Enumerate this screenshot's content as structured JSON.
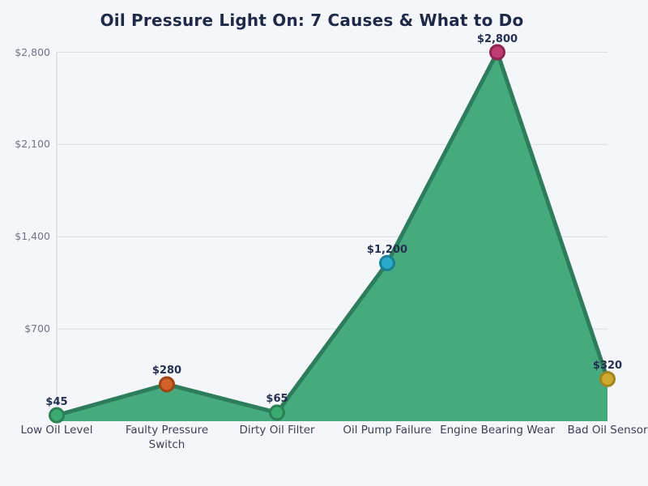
{
  "title": "Oil Pressure Light On: 7 Causes & What to Do",
  "chart_data": {
    "type": "area",
    "title": "Oil Pressure Light On: 7 Causes & What to Do",
    "categories": [
      "Low Oil Level",
      "Faulty Pressure Switch",
      "Dirty Oil Filter",
      "Oil Pump Failure",
      "Engine Bearing Wear",
      "Bad Oil Sensor"
    ],
    "values": [
      45,
      280,
      65,
      1200,
      2800,
      320
    ],
    "point_labels": [
      "$45",
      "$280",
      "$65",
      "$1,200",
      "$2,800",
      "$320"
    ],
    "point_colors": [
      "#3cab71",
      "#d2622a",
      "#3cab71",
      "#2aa9c9",
      "#c13a71",
      "#cfa92e"
    ],
    "point_stroke_colors": [
      "#2b8156",
      "#9e4517",
      "#2b8156",
      "#1b7f96",
      "#8e2450",
      "#a08420"
    ],
    "y_ticks": [
      700,
      1400,
      2100,
      2800
    ],
    "y_tick_labels": [
      "$700",
      "$1,400",
      "$2,100",
      "$2,800"
    ],
    "ylim": [
      0,
      2800
    ],
    "xlabel": "",
    "ylabel": "",
    "grid": true,
    "legend": "none",
    "area_fill": "#45aa7d",
    "line_color": "#2d7c5c",
    "grid_color": "#d8dce4",
    "axis_color": "#ccd2dc",
    "background": "#f4f6fa"
  }
}
